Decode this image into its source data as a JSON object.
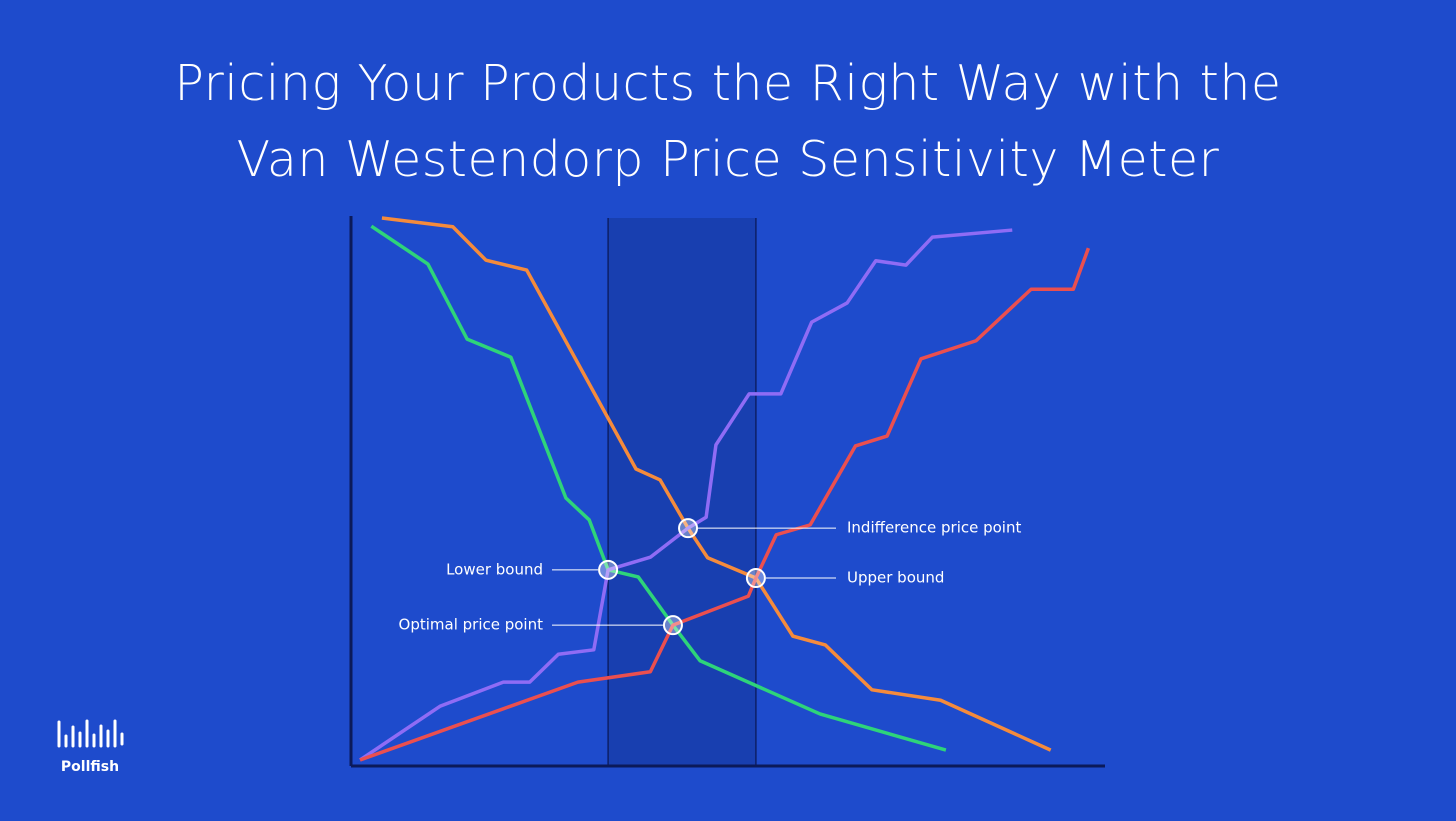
{
  "chart_data": {
    "type": "line",
    "title": "Pricing Your Products the Right Way with the Van Westendorp Price Sensitivity Meter",
    "xlim": [
      0,
      100
    ],
    "ylim": [
      0,
      100
    ],
    "band": [
      34.1,
      53.7
    ],
    "series": [
      {
        "color": "#f58b3c",
        "x": [
          4.1,
          13.5,
          17.9,
          23.3,
          37.8,
          41.0,
          44.7,
          47.3,
          53.7,
          58.6,
          62.9,
          69.1,
          78.2,
          92.8
        ],
        "values": [
          100,
          98.4,
          92.3,
          90.5,
          54.2,
          52.2,
          43.4,
          38.0,
          34.3,
          23.7,
          22.1,
          13.9,
          12.0,
          2.9
        ]
      },
      {
        "color": "#2ed47a",
        "x": [
          2.7,
          10.2,
          15.4,
          21.2,
          28.5,
          31.6,
          34.1,
          38.1,
          42.7,
          46.3,
          62.2,
          78.9
        ],
        "values": [
          98.5,
          91.6,
          77.9,
          74.6,
          48.9,
          44.9,
          35.8,
          34.5,
          25.7,
          19.2,
          9.5,
          2.9
        ]
      },
      {
        "color": "#8f6cf5",
        "x": [
          1.2,
          11.8,
          20.2,
          23.7,
          27.5,
          32.2,
          34.1,
          39.7,
          44.7,
          47.1,
          48.4,
          52.8,
          57.0,
          61.1,
          65.8,
          69.6,
          73.6,
          77.1,
          87.7
        ],
        "values": [
          1.1,
          10.9,
          15.3,
          15.3,
          20.4,
          21.2,
          35.8,
          38.1,
          43.4,
          45.4,
          58.6,
          67.9,
          67.9,
          81.0,
          84.5,
          92.2,
          91.4,
          96.5,
          97.8
        ]
      },
      {
        "color": "#eb4f4f",
        "x": [
          1.2,
          30.1,
          39.7,
          42.7,
          52.7,
          53.7,
          56.4,
          60.9,
          66.9,
          71.1,
          75.6,
          82.9,
          90.2,
          95.8,
          97.8
        ],
        "values": [
          1.1,
          15.3,
          17.2,
          25.7,
          31.0,
          34.3,
          42.2,
          44.0,
          58.4,
          60.2,
          74.3,
          77.6,
          87.0,
          87.0,
          94.5
        ]
      }
    ],
    "annotations": [
      {
        "label": "Indifference price point",
        "x": 44.7,
        "y": 43.4
      },
      {
        "label": "Lower bound",
        "x": 34.1,
        "y": 35.8
      },
      {
        "label": "Upper bound",
        "x": 53.7,
        "y": 34.3
      },
      {
        "label": "Optimal price point",
        "x": 42.7,
        "y": 25.7
      }
    ]
  },
  "logo": "Pollfish"
}
